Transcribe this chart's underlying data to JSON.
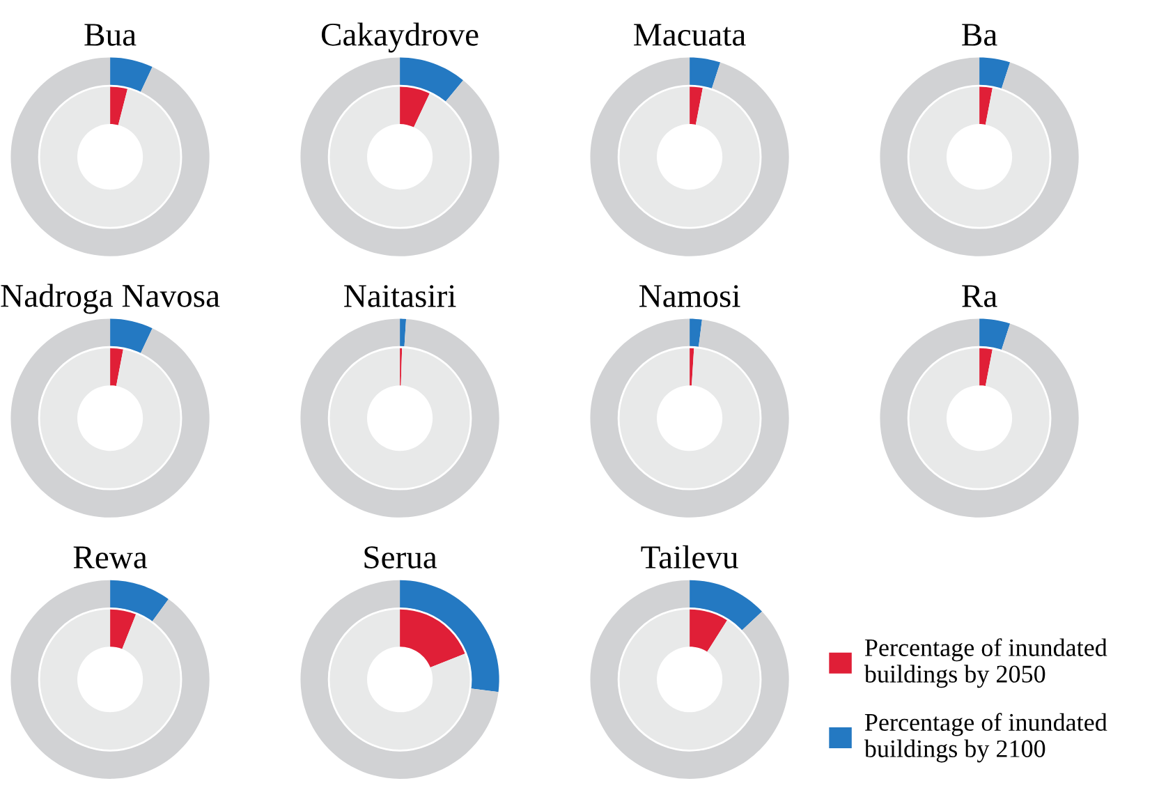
{
  "chart_data": [
    {
      "type": "donut",
      "title": "Bua",
      "series": [
        {
          "colors": [
            "#e01f37",
            "#e8e9e9"
          ],
          "values": [
            4,
            96
          ]
        },
        {
          "colors": [
            "#2479c2",
            "#d1d2d4"
          ],
          "values": [
            7,
            93
          ]
        }
      ]
    },
    {
      "type": "donut",
      "title": "Cakaydrove",
      "series": [
        {
          "colors": [
            "#e01f37",
            "#e8e9e9"
          ],
          "values": [
            7,
            93
          ]
        },
        {
          "colors": [
            "#2479c2",
            "#d1d2d4"
          ],
          "values": [
            11,
            89
          ]
        }
      ]
    },
    {
      "type": "donut",
      "title": "Macuata",
      "series": [
        {
          "colors": [
            "#e01f37",
            "#e8e9e9"
          ],
          "values": [
            3,
            97
          ]
        },
        {
          "colors": [
            "#2479c2",
            "#d1d2d4"
          ],
          "values": [
            5,
            95
          ]
        }
      ]
    },
    {
      "type": "donut",
      "title": "Ba",
      "series": [
        {
          "colors": [
            "#e01f37",
            "#e8e9e9"
          ],
          "values": [
            3,
            97
          ]
        },
        {
          "colors": [
            "#2479c2",
            "#d1d2d4"
          ],
          "values": [
            5,
            95
          ]
        }
      ]
    },
    {
      "type": "donut",
      "title": "Nadroga Navosa",
      "series": [
        {
          "colors": [
            "#e01f37",
            "#e8e9e9"
          ],
          "values": [
            3,
            97
          ]
        },
        {
          "colors": [
            "#2479c2",
            "#d1d2d4"
          ],
          "values": [
            7,
            93
          ]
        }
      ]
    },
    {
      "type": "donut",
      "title": "Naitasiri",
      "series": [
        {
          "colors": [
            "#e01f37",
            "#e8e9e9"
          ],
          "values": [
            0.5,
            99.5
          ]
        },
        {
          "colors": [
            "#2479c2",
            "#d1d2d4"
          ],
          "values": [
            1,
            99
          ]
        }
      ]
    },
    {
      "type": "donut",
      "title": "Namosi",
      "series": [
        {
          "colors": [
            "#e01f37",
            "#e8e9e9"
          ],
          "values": [
            1,
            99
          ]
        },
        {
          "colors": [
            "#2479c2",
            "#d1d2d4"
          ],
          "values": [
            2,
            98
          ]
        }
      ]
    },
    {
      "type": "donut",
      "title": "Ra",
      "series": [
        {
          "colors": [
            "#e01f37",
            "#e8e9e9"
          ],
          "values": [
            3,
            97
          ]
        },
        {
          "colors": [
            "#2479c2",
            "#d1d2d4"
          ],
          "values": [
            5,
            95
          ]
        }
      ]
    },
    {
      "type": "donut",
      "title": "Rewa",
      "series": [
        {
          "colors": [
            "#e01f37",
            "#e8e9e9"
          ],
          "values": [
            6,
            94
          ]
        },
        {
          "colors": [
            "#2479c2",
            "#d1d2d4"
          ],
          "values": [
            10,
            90
          ]
        }
      ]
    },
    {
      "type": "donut",
      "title": "Serua",
      "series": [
        {
          "colors": [
            "#e01f37",
            "#e8e9e9"
          ],
          "values": [
            19,
            81
          ]
        },
        {
          "colors": [
            "#2479c2",
            "#d1d2d4"
          ],
          "values": [
            27,
            73
          ]
        }
      ]
    },
    {
      "type": "donut",
      "title": "Tailevu",
      "legend": "right",
      "series": [
        {
          "name": "Percentage of inundated buildings by 2050",
          "colors": [
            "#e01f37",
            "#e8e9e9"
          ],
          "values": [
            9,
            91
          ]
        },
        {
          "name": "Percentage of inundated buildings by 2100",
          "colors": [
            "#2479c2",
            "#d1d2d4"
          ],
          "values": [
            13,
            87
          ]
        }
      ]
    }
  ]
}
